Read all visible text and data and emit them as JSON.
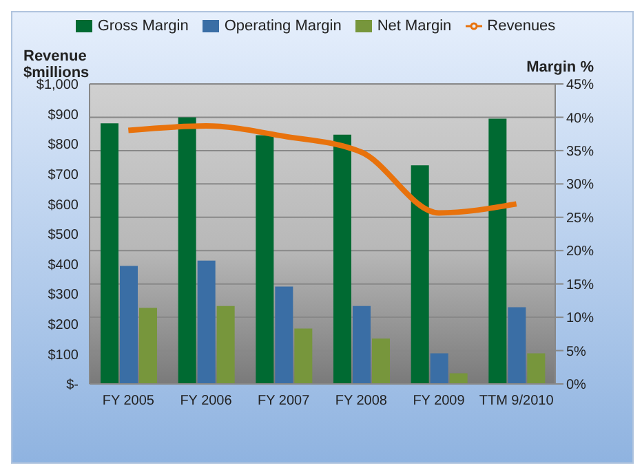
{
  "chart_data": {
    "type": "bar",
    "categories": [
      "FY 2005",
      "FY 2006",
      "FY 2007",
      "FY 2008",
      "FY 2009",
      "TTM 9/2010"
    ],
    "ylabel": "Revenue $millions",
    "y2label": "Margin %",
    "series": [
      {
        "name": "Gross Margin",
        "color": "#006a32",
        "axis": "y2",
        "values": [
          39.1,
          40.0,
          37.3,
          37.4,
          32.8,
          39.8
        ]
      },
      {
        "name": "Operating Margin",
        "color": "#3a6ea5",
        "axis": "y2",
        "values": [
          17.7,
          18.5,
          14.6,
          11.7,
          4.6,
          11.5
        ]
      },
      {
        "name": "Net Margin",
        "color": "#77963c",
        "axis": "y2",
        "values": [
          11.4,
          11.7,
          8.3,
          6.8,
          1.6,
          4.6
        ]
      },
      {
        "name": "Revenues",
        "type": "line",
        "color": "#e8720c",
        "axis": "y",
        "values": [
          845,
          860,
          826,
          773,
          570,
          600
        ]
      }
    ],
    "ylim": [
      0,
      1000
    ],
    "yticks": [
      {
        "value": 0,
        "label": "$-"
      },
      {
        "value": 100,
        "label": "$100"
      },
      {
        "value": 200,
        "label": "$200"
      },
      {
        "value": 300,
        "label": "$300"
      },
      {
        "value": 400,
        "label": "$400"
      },
      {
        "value": 500,
        "label": "$500"
      },
      {
        "value": 600,
        "label": "$600"
      },
      {
        "value": 700,
        "label": "$700"
      },
      {
        "value": 800,
        "label": "$800"
      },
      {
        "value": 900,
        "label": "$900"
      },
      {
        "value": 1000,
        "label": "$1,000"
      }
    ],
    "y2lim": [
      0,
      45
    ],
    "y2ticks": [
      {
        "value": 0,
        "label": "0%"
      },
      {
        "value": 5,
        "label": "5%"
      },
      {
        "value": 10,
        "label": "10%"
      },
      {
        "value": 15,
        "label": "15%"
      },
      {
        "value": 20,
        "label": "20%"
      },
      {
        "value": 25,
        "label": "25%"
      },
      {
        "value": 30,
        "label": "30%"
      },
      {
        "value": 35,
        "label": "35%"
      },
      {
        "value": 40,
        "label": "40%"
      },
      {
        "value": 45,
        "label": "45%"
      }
    ],
    "grid": "y",
    "legend": "top",
    "marker": "none"
  }
}
